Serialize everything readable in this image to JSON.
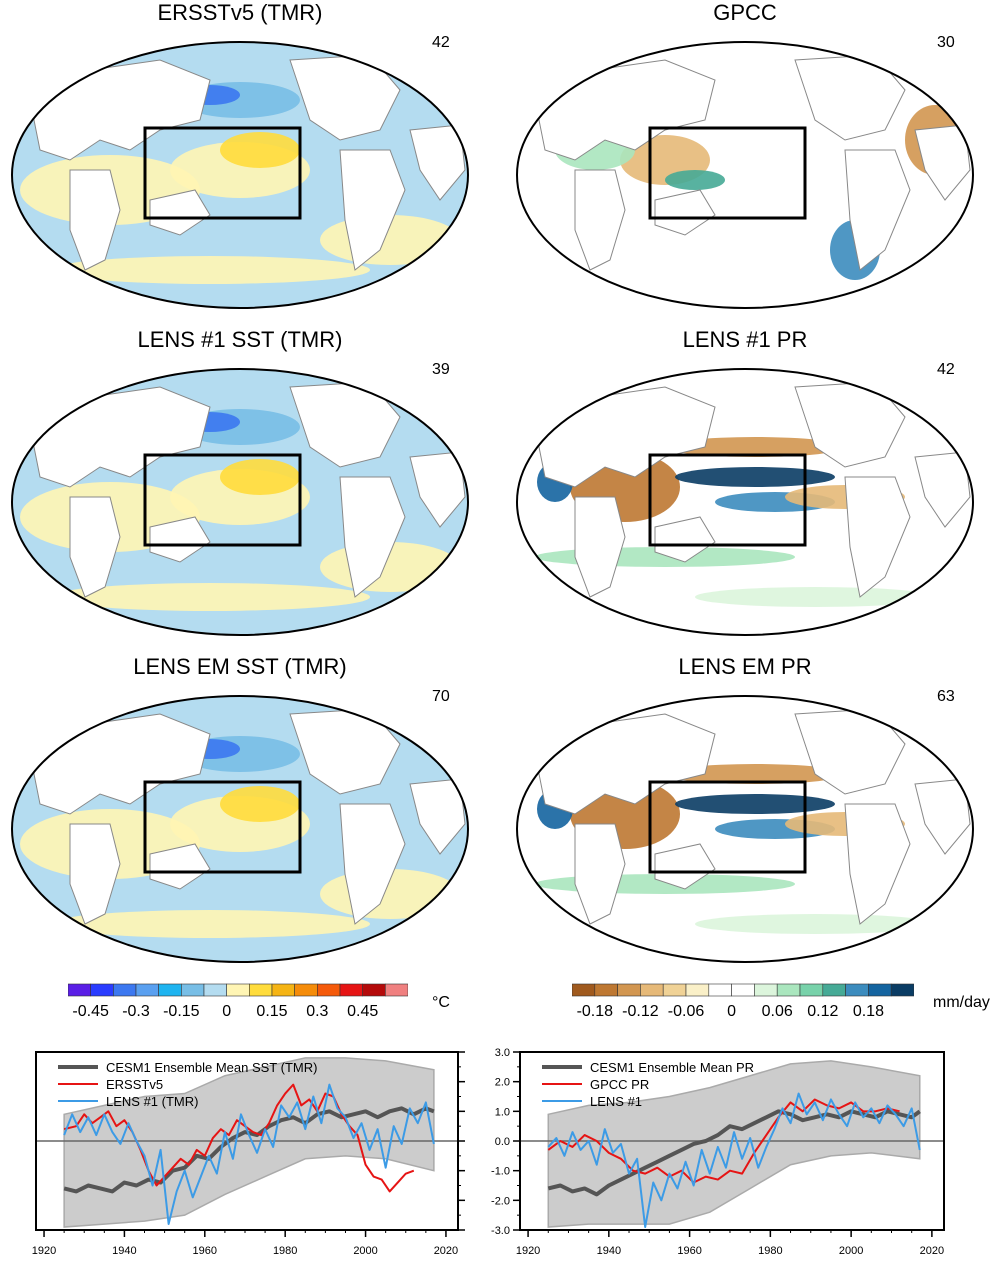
{
  "maps": [
    {
      "id": "ersst",
      "title": "ERSSTv5 (TMR)",
      "number": "42",
      "kind": "sst"
    },
    {
      "id": "gpcc",
      "title": "GPCC",
      "number": "30",
      "kind": "pr_obs"
    },
    {
      "id": "lens1sst",
      "title": "LENS #1 SST (TMR)",
      "number": "39",
      "kind": "sst"
    },
    {
      "id": "lens1pr",
      "title": "LENS #1 PR",
      "number": "42",
      "kind": "pr"
    },
    {
      "id": "lensemsst",
      "title": "LENS EM SST (TMR)",
      "number": "70",
      "kind": "sst"
    },
    {
      "id": "lensempr",
      "title": "LENS EM PR",
      "number": "63",
      "kind": "pr"
    }
  ],
  "colorbars": {
    "sst": {
      "unit": "°C",
      "colors": [
        "#5a1ee6",
        "#2a3cff",
        "#3c78f0",
        "#5aa0f0",
        "#1eb4f0",
        "#78bee6",
        "#b4dcf0",
        "#fff5b4",
        "#ffdc3c",
        "#f5b414",
        "#f58c0a",
        "#f55a0a",
        "#e61414",
        "#b40a0a",
        "#f08080"
      ],
      "labels": [
        "-0.45",
        "-0.3",
        "-0.15",
        "0",
        "0.15",
        "0.3",
        "0.45"
      ]
    },
    "pr": {
      "unit": "mm/day",
      "colors": [
        "#a05a1e",
        "#be7832",
        "#d29650",
        "#e6b978",
        "#f0d296",
        "#faf0c8",
        "#ffffff",
        "#ffffff",
        "#dcf5dc",
        "#aae6be",
        "#78d2aa",
        "#46aa96",
        "#3c8cbe",
        "#1464a0",
        "#0a3c64"
      ],
      "labels": [
        "-0.18",
        "-0.12",
        "-0.06",
        "0",
        "0.06",
        "0.12",
        "0.18"
      ]
    }
  },
  "chart_data": [
    {
      "type": "line",
      "title": "",
      "xlabel": "",
      "ylabel": "",
      "xlim": [
        1918,
        2023
      ],
      "ylim": [
        -3,
        3
      ],
      "x_ticks": [
        "1920",
        "1940",
        "1960",
        "1980",
        "2000",
        "2020"
      ],
      "y_ticks": [
        "3.0",
        "2.0",
        "1.0",
        "0.0",
        "-1.0",
        "-2.0",
        "-3.0"
      ],
      "y_tick_side": "right",
      "y_tick_labels_visible": false,
      "legend": "top-left",
      "spread_band": {
        "x": [
          1925,
          1935,
          1945,
          1955,
          1965,
          1975,
          1985,
          1995,
          2005,
          2017
        ],
        "upper": [
          0.9,
          1.2,
          1.5,
          1.6,
          2.2,
          2.5,
          2.8,
          2.8,
          2.7,
          2.4
        ],
        "lower": [
          -2.9,
          -2.8,
          -2.7,
          -2.5,
          -1.8,
          -1.2,
          -0.6,
          -0.5,
          -0.6,
          -1.0
        ]
      },
      "series": [
        {
          "name": "CESM1 Ensemble Mean SST (TMR)",
          "color": "#555555",
          "width": 4,
          "x": [
            1925,
            1928,
            1931,
            1934,
            1937,
            1940,
            1943,
            1946,
            1949,
            1952,
            1955,
            1958,
            1961,
            1964,
            1967,
            1970,
            1973,
            1976,
            1979,
            1982,
            1985,
            1988,
            1991,
            1994,
            1997,
            2000,
            2003,
            2006,
            2009,
            2012,
            2015,
            2017
          ],
          "y": [
            -1.6,
            -1.7,
            -1.5,
            -1.6,
            -1.7,
            -1.4,
            -1.5,
            -1.3,
            -1.4,
            -1.0,
            -0.9,
            -0.5,
            -0.6,
            -0.2,
            0.1,
            0.3,
            0.2,
            0.5,
            0.7,
            0.8,
            0.6,
            0.9,
            1.0,
            0.8,
            0.9,
            1.0,
            0.8,
            1.0,
            1.1,
            0.9,
            1.1,
            1.0
          ]
        },
        {
          "name": "ERSSTv5",
          "color": "#e61414",
          "width": 2,
          "x": [
            1925,
            1928,
            1930,
            1932,
            1934,
            1936,
            1938,
            1940,
            1942,
            1944,
            1946,
            1948,
            1950,
            1952,
            1954,
            1956,
            1958,
            1960,
            1962,
            1964,
            1966,
            1968,
            1970,
            1972,
            1974,
            1976,
            1978,
            1980,
            1982,
            1984,
            1986,
            1988,
            1990,
            1992,
            1994,
            1996,
            1998,
            2000,
            2002,
            2004,
            2006,
            2008,
            2010,
            2012
          ],
          "y": [
            0.4,
            0.5,
            0.9,
            0.6,
            0.8,
            1.0,
            0.5,
            0.7,
            0.3,
            -0.3,
            -1.0,
            -1.5,
            -1.2,
            -0.9,
            -0.6,
            -0.8,
            -0.3,
            -0.5,
            0.1,
            0.4,
            0.2,
            0.7,
            0.5,
            0.3,
            0.2,
            0.6,
            1.2,
            1.6,
            1.9,
            1.2,
            1.4,
            1.0,
            1.6,
            1.5,
            0.9,
            0.5,
            0.2,
            -0.8,
            -1.2,
            -1.3,
            -1.7,
            -1.4,
            -1.1,
            -1.0
          ]
        },
        {
          "name": "LENS #1 (TMR)",
          "color": "#3c9be6",
          "width": 2,
          "x": [
            1925,
            1927,
            1929,
            1931,
            1933,
            1935,
            1937,
            1939,
            1941,
            1943,
            1945,
            1947,
            1949,
            1951,
            1953,
            1955,
            1957,
            1959,
            1961,
            1963,
            1965,
            1967,
            1969,
            1971,
            1973,
            1975,
            1977,
            1979,
            1981,
            1983,
            1985,
            1987,
            1989,
            1991,
            1993,
            1995,
            1997,
            1999,
            2001,
            2003,
            2005,
            2007,
            2009,
            2011,
            2013,
            2015,
            2017
          ],
          "y": [
            0.2,
            0.9,
            0.3,
            0.8,
            0.2,
            0.9,
            0.3,
            -0.1,
            0.6,
            0.0,
            -0.5,
            -1.5,
            -0.3,
            -2.8,
            -1.7,
            -1.0,
            -1.9,
            -1.2,
            -0.5,
            -1.1,
            0.3,
            -0.6,
            0.9,
            0.2,
            -0.4,
            0.4,
            -0.2,
            1.2,
            0.8,
            1.3,
            0.4,
            1.5,
            0.6,
            1.9,
            1.1,
            0.8,
            0.1,
            0.6,
            -0.3,
            0.4,
            -0.9,
            0.5,
            -0.1,
            1.1,
            0.6,
            1.3,
            -0.1
          ]
        }
      ]
    },
    {
      "type": "line",
      "title": "",
      "xlabel": "",
      "ylabel": "",
      "xlim": [
        1918,
        2023
      ],
      "ylim": [
        -3,
        3
      ],
      "x_ticks": [
        "1920",
        "1940",
        "1960",
        "1980",
        "2000",
        "2020"
      ],
      "y_ticks": [
        "3.0",
        "2.0",
        "1.0",
        "0.0",
        "-1.0",
        "-2.0",
        "-3.0"
      ],
      "y_tick_side": "left",
      "y_tick_labels_visible": true,
      "legend": "top-left",
      "spread_band": {
        "x": [
          1925,
          1935,
          1945,
          1955,
          1965,
          1975,
          1985,
          1995,
          2005,
          2017
        ],
        "upper": [
          0.9,
          1.2,
          1.3,
          1.5,
          1.8,
          2.2,
          2.6,
          2.7,
          2.5,
          2.2
        ],
        "lower": [
          -2.9,
          -2.8,
          -2.8,
          -2.8,
          -2.4,
          -1.6,
          -0.8,
          -0.5,
          -0.4,
          -0.6
        ]
      },
      "series": [
        {
          "name": "CESM1 Ensemble Mean PR",
          "color": "#555555",
          "width": 4,
          "x": [
            1925,
            1928,
            1931,
            1934,
            1937,
            1940,
            1943,
            1946,
            1949,
            1952,
            1955,
            1958,
            1961,
            1964,
            1967,
            1970,
            1973,
            1976,
            1979,
            1982,
            1985,
            1988,
            1991,
            1994,
            1997,
            2000,
            2003,
            2006,
            2009,
            2012,
            2015,
            2017
          ],
          "y": [
            -1.6,
            -1.5,
            -1.7,
            -1.6,
            -1.8,
            -1.5,
            -1.3,
            -1.1,
            -0.9,
            -0.7,
            -0.5,
            -0.3,
            -0.1,
            0.0,
            0.2,
            0.5,
            0.4,
            0.6,
            0.8,
            1.0,
            0.9,
            0.7,
            0.8,
            0.9,
            0.8,
            1.0,
            0.9,
            0.8,
            1.0,
            0.9,
            0.8,
            1.0
          ]
        },
        {
          "name": "GPCC PR",
          "color": "#e61414",
          "width": 2,
          "x": [
            1925,
            1928,
            1931,
            1934,
            1937,
            1940,
            1943,
            1946,
            1949,
            1952,
            1955,
            1958,
            1961,
            1964,
            1967,
            1970,
            1973,
            1976,
            1979,
            1982,
            1985,
            1988,
            1991,
            1994,
            1997,
            2000,
            2003,
            2006,
            2009,
            2012
          ],
          "y": [
            -0.3,
            0.0,
            -0.2,
            0.2,
            0.0,
            -0.4,
            -0.6,
            -1.0,
            -1.1,
            -0.9,
            -1.2,
            -1.0,
            -1.4,
            -1.2,
            -1.3,
            -1.0,
            -1.1,
            -0.4,
            0.2,
            0.8,
            1.3,
            1.0,
            1.4,
            1.2,
            1.1,
            1.3,
            1.0,
            1.0,
            1.1,
            1.0
          ]
        },
        {
          "name": "LENS #1",
          "color": "#3c9be6",
          "width": 2,
          "x": [
            1925,
            1927,
            1929,
            1931,
            1933,
            1935,
            1937,
            1939,
            1941,
            1943,
            1945,
            1947,
            1949,
            1951,
            1953,
            1955,
            1957,
            1959,
            1961,
            1963,
            1965,
            1967,
            1969,
            1971,
            1973,
            1975,
            1977,
            1979,
            1981,
            1983,
            1985,
            1987,
            1989,
            1991,
            1993,
            1995,
            1997,
            1999,
            2001,
            2003,
            2005,
            2007,
            2009,
            2011,
            2013,
            2015,
            2017
          ],
          "y": [
            -0.2,
            0.1,
            -0.5,
            0.3,
            -0.3,
            0.0,
            -0.8,
            0.4,
            -0.4,
            -0.1,
            -1.1,
            -0.6,
            -2.9,
            -1.4,
            -2.0,
            -1.1,
            -1.6,
            -0.7,
            -1.5,
            -0.3,
            -1.1,
            -0.2,
            -0.9,
            0.3,
            -0.6,
            0.1,
            -0.9,
            -0.2,
            0.4,
            1.1,
            0.6,
            1.6,
            0.9,
            1.3,
            0.7,
            1.4,
            0.9,
            0.5,
            1.3,
            0.8,
            1.1,
            0.6,
            1.2,
            0.9,
            0.5,
            1.1,
            -0.3
          ]
        }
      ]
    }
  ]
}
